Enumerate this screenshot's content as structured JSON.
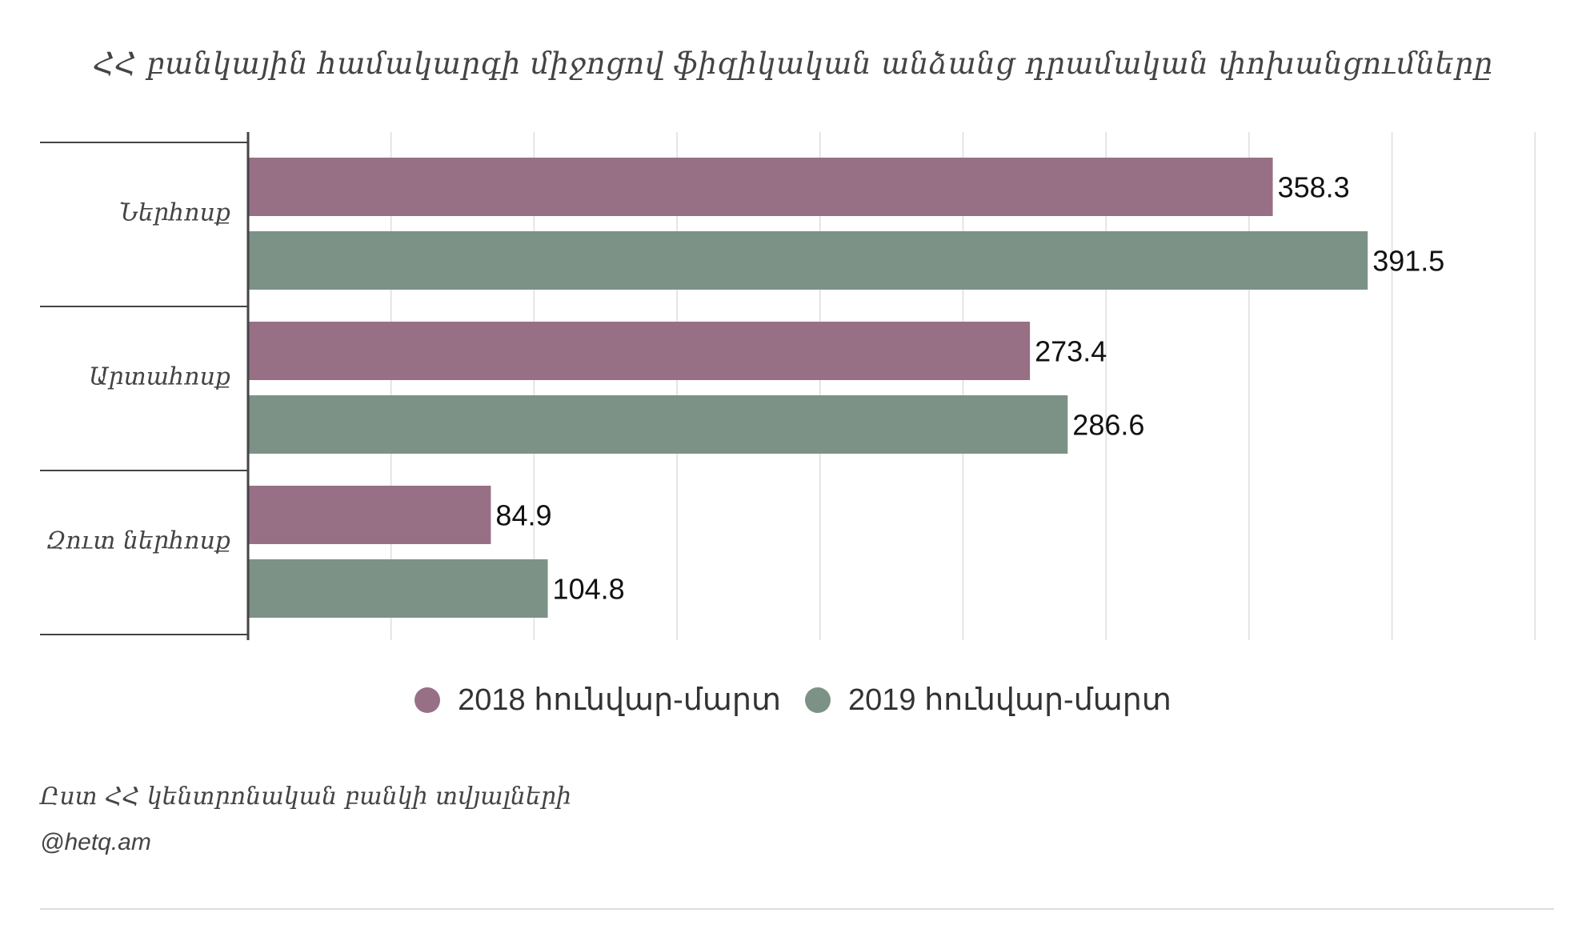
{
  "chart_data": {
    "type": "bar",
    "orientation": "horizontal",
    "title": "ՀՀ բանկային համակարգի միջոցով ֆիզիկական անձանց դրամական փոխանցումները",
    "categories": [
      "Ներհոսք",
      "Արտահոսք",
      "Զուտ ներհոսք"
    ],
    "series": [
      {
        "name": "2018 հունվար-մարտ",
        "color": "#987086",
        "values": [
          358.3,
          273.4,
          84.9
        ],
        "labels": [
          "358.3",
          "273.4",
          "84.9"
        ]
      },
      {
        "name": "2019 հունվար-մարտ",
        "color": "#7d9286",
        "values": [
          391.5,
          286.6,
          104.8
        ],
        "labels": [
          "391.5",
          "286.6",
          "104.8"
        ]
      }
    ],
    "xlim": [
      0,
      450
    ],
    "grid": true,
    "legend_position": "bottom"
  },
  "footer": {
    "source": "Ըստ ՀՀ կենտրոնական բանկի տվյալների",
    "credit": "@hetq.am"
  }
}
